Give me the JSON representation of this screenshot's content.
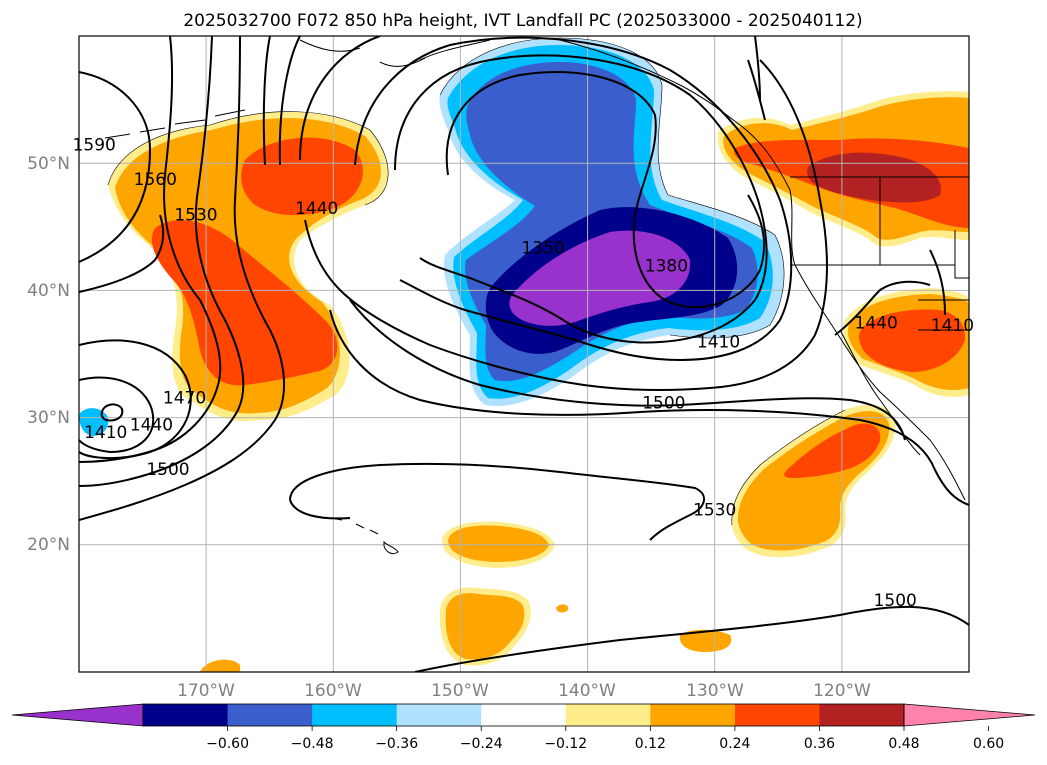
{
  "title": "2025032700 F072 850 hPa height, IVT Landfall PC (2025033000 - 2025040112)",
  "map": {
    "projection": "PlateCarree",
    "extent": {
      "lon_min": -180,
      "lon_max": -110,
      "lat_min": 10,
      "lat_max": 60
    },
    "gridlines": true,
    "lat_labels": [
      {
        "lat": 50,
        "text": "50°N"
      },
      {
        "lat": 40,
        "text": "40°N"
      },
      {
        "lat": 30,
        "text": "30°N"
      },
      {
        "lat": 20,
        "text": "20°N"
      }
    ],
    "lon_labels": [
      {
        "lon": -170,
        "text": "170°W"
      },
      {
        "lon": -160,
        "text": "160°W"
      },
      {
        "lon": -150,
        "text": "150°W"
      },
      {
        "lon": -140,
        "text": "140°W"
      },
      {
        "lon": -130,
        "text": "130°W"
      },
      {
        "lon": -120,
        "text": "120°W"
      }
    ]
  },
  "height_contours": {
    "units": "850 hPa geopotential height (m)",
    "labels": [
      {
        "value": "1590",
        "lon": -178.8,
        "lat": 51.0
      },
      {
        "value": "1560",
        "lon": -174.0,
        "lat": 48.3
      },
      {
        "value": "1530",
        "lon": -170.8,
        "lat": 45.5
      },
      {
        "value": "1440",
        "lon": -161.3,
        "lat": 46.0
      },
      {
        "value": "1350",
        "lon": -143.5,
        "lat": 42.9
      },
      {
        "value": "1380",
        "lon": -133.8,
        "lat": 41.5
      },
      {
        "value": "1410",
        "lon": -129.7,
        "lat": 35.5
      },
      {
        "value": "1500",
        "lon": -134.0,
        "lat": 30.7
      },
      {
        "value": "1410",
        "lon": -177.9,
        "lat": 28.4
      },
      {
        "value": "1440",
        "lon": -174.3,
        "lat": 29.0
      },
      {
        "value": "1470",
        "lon": -171.7,
        "lat": 31.1
      },
      {
        "value": "1500",
        "lon": -173.0,
        "lat": 25.5
      },
      {
        "value": "1530",
        "lon": -130.0,
        "lat": 22.3
      },
      {
        "value": "1500",
        "lon": -115.8,
        "lat": 15.2
      },
      {
        "value": "1440",
        "lon": -117.3,
        "lat": 37.0
      },
      {
        "value": "1410",
        "lon": -111.3,
        "lat": 36.8
      }
    ]
  },
  "colorbar": {
    "tick_labels": [
      "−0.60",
      "−0.48",
      "−0.36",
      "−0.24",
      "−0.12",
      "0.12",
      "0.24",
      "0.36",
      "0.48",
      "0.60"
    ],
    "colors": [
      "#9932cc",
      "#00008b",
      "#3a5fcd",
      "#00bfff",
      "#b0e2ff",
      "#ffffff",
      "#ffec8b",
      "#ffa500",
      "#ff4500",
      "#b22222",
      "#ff82ab"
    ],
    "extend": "both"
  }
}
